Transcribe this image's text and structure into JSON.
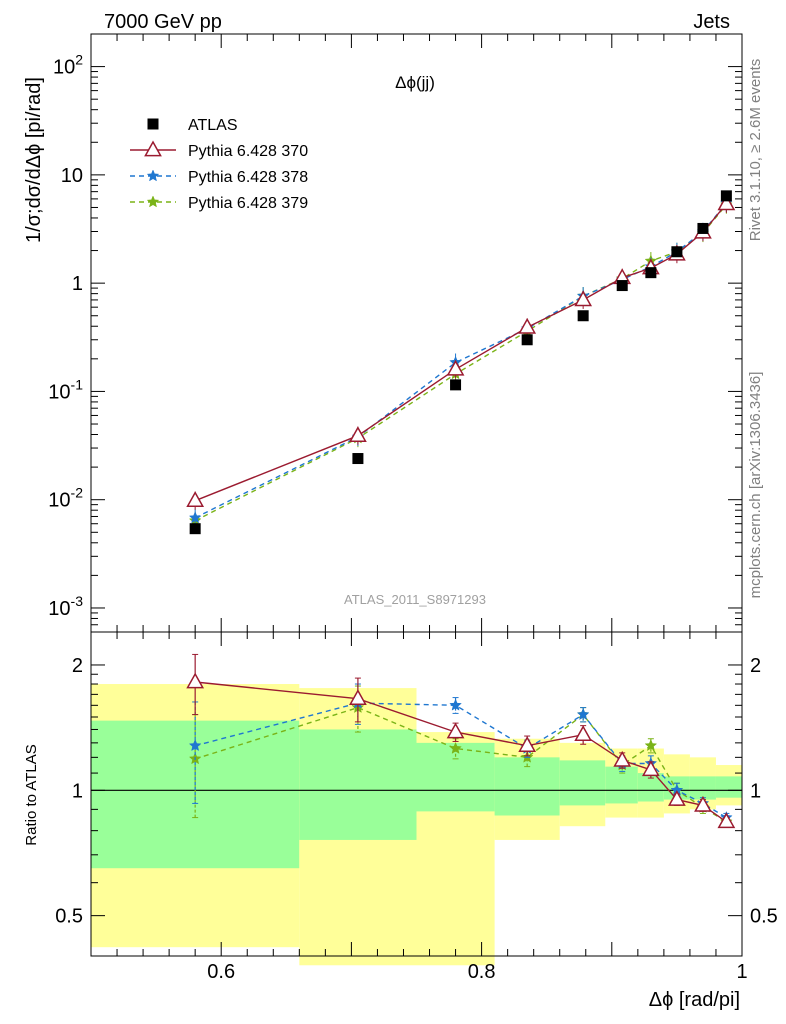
{
  "header": {
    "left": "7000 GeV pp",
    "right": "Jets"
  },
  "side_labels": {
    "rivet": "Rivet 3.1.10, ≥ 2.6M events",
    "mcplots": "mcplots.cern.ch [arXiv:1306.3436]"
  },
  "chart_data": [
    {
      "type": "scatter",
      "title": "Δϕ(jj)",
      "watermark": "ATLAS_2011_S8971293",
      "ylabel": "1/σ;dσ/dΔϕ [pi/rad]",
      "yscale": "log",
      "ylim": [
        0.0006,
        200
      ],
      "xlim": [
        0.5,
        1.0
      ],
      "yticks": [
        {
          "base": "10",
          "exp": "-3"
        },
        {
          "base": "10",
          "exp": "-2"
        },
        {
          "base": "10",
          "exp": "-1"
        },
        {
          "base": "1",
          "exp": ""
        },
        {
          "base": "10",
          "exp": ""
        },
        {
          "base": "10",
          "exp": "2"
        }
      ],
      "legend_position": "top-left",
      "x": [
        0.58,
        0.705,
        0.78,
        0.835,
        0.878,
        0.908,
        0.93,
        0.95,
        0.97,
        0.988
      ],
      "series": [
        {
          "name": "ATLAS",
          "color": "#000000",
          "values": [
            0.0054,
            0.024,
            0.115,
            0.3,
            0.5,
            0.95,
            1.25,
            1.95,
            3.2,
            6.4
          ]
        },
        {
          "name": "Pythia 6.428 370",
          "color": "#9b1b30",
          "values": [
            0.0098,
            0.039,
            0.16,
            0.39,
            0.7,
            1.12,
            1.38,
            1.85,
            2.95,
            5.4
          ]
        },
        {
          "name": "Pythia 6.428 378",
          "color": "#1f77d0",
          "values": [
            0.0068,
            0.038,
            0.185,
            0.38,
            0.76,
            1.08,
            1.42,
            1.95,
            2.98,
            5.5
          ]
        },
        {
          "name": "Pythia 6.428 379",
          "color": "#7ab317",
          "values": [
            0.0064,
            0.037,
            0.145,
            0.36,
            0.76,
            1.1,
            1.6,
            1.95,
            2.9,
            5.3
          ]
        }
      ]
    },
    {
      "type": "scatter",
      "ylabel": "Ratio to ATLAS",
      "xlabel": "Δϕ [rad/pi]",
      "yscale": "log",
      "ylim": [
        0.4,
        2.4
      ],
      "xlim": [
        0.5,
        1.0
      ],
      "xticks": [
        "0.6",
        "0.8",
        "1"
      ],
      "xtick_values": [
        0.6,
        0.8,
        1.0
      ],
      "yticks": [
        "0.5",
        "1",
        "2"
      ],
      "ytick_values": [
        0.5,
        1.0,
        2.0
      ],
      "x": [
        0.58,
        0.705,
        0.78,
        0.835,
        0.878,
        0.908,
        0.93,
        0.95,
        0.97,
        0.988
      ],
      "bands": {
        "x_edges": [
          0.5,
          0.66,
          0.75,
          0.81,
          0.86,
          0.895,
          0.92,
          0.94,
          0.96,
          0.98,
          1.0
        ],
        "yellow": [
          [
            0.42,
            1.8
          ],
          [
            0.38,
            1.76
          ],
          [
            0.38,
            1.38
          ],
          [
            0.76,
            1.33
          ],
          [
            0.82,
            1.3
          ],
          [
            0.86,
            1.26
          ],
          [
            0.86,
            1.26
          ],
          [
            0.88,
            1.22
          ],
          [
            0.9,
            1.2
          ],
          [
            0.92,
            1.15
          ]
        ],
        "green": [
          [
            0.65,
            1.47
          ],
          [
            0.76,
            1.4
          ],
          [
            0.89,
            1.3
          ],
          [
            0.87,
            1.2
          ],
          [
            0.92,
            1.18
          ],
          [
            0.93,
            1.14
          ],
          [
            0.94,
            1.1
          ],
          [
            0.95,
            1.08
          ],
          [
            0.95,
            1.08
          ],
          [
            0.96,
            1.08
          ]
        ]
      },
      "series": [
        {
          "name": "Pythia 6.428 370",
          "color": "#9b1b30",
          "values": [
            1.82,
            1.66,
            1.38,
            1.28,
            1.36,
            1.18,
            1.12,
            0.95,
            0.92,
            0.84
          ],
          "errors": [
            0.3,
            0.2,
            0.07,
            0.07,
            0.07,
            0.05,
            0.05,
            0.03,
            0.03,
            0.02
          ]
        },
        {
          "name": "Pythia 6.428 378",
          "color": "#1f77d0",
          "values": [
            1.28,
            1.62,
            1.6,
            1.26,
            1.52,
            1.16,
            1.16,
            1.0,
            0.93,
            0.86
          ],
          "errors": [
            0.35,
            0.18,
            0.07,
            0.06,
            0.06,
            0.05,
            0.05,
            0.04,
            0.03,
            0.02
          ]
        },
        {
          "name": "Pythia 6.428 379",
          "color": "#7ab317",
          "values": [
            1.19,
            1.58,
            1.26,
            1.2,
            1.52,
            1.15,
            1.28,
            1.0,
            0.91,
            0.84
          ],
          "errors": [
            0.33,
            0.2,
            0.07,
            0.06,
            0.06,
            0.05,
            0.05,
            0.04,
            0.03,
            0.02
          ]
        }
      ]
    }
  ]
}
